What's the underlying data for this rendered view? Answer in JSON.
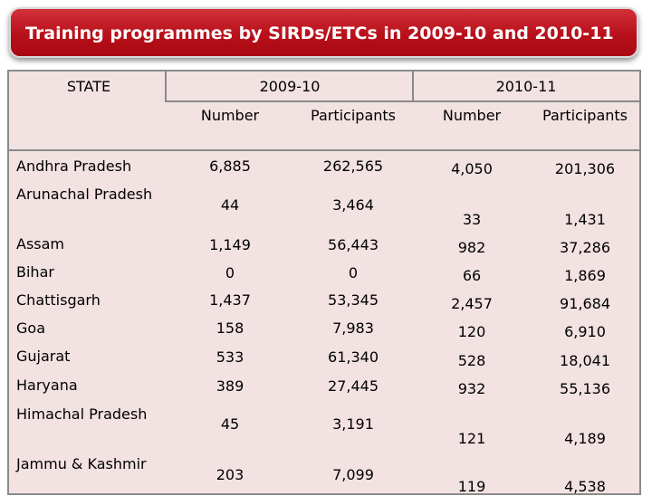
{
  "title": "Training programmes by SIRDs/ETCs in 2009-10 and 2010-11",
  "header": {
    "state": "STATE",
    "year1": "2009-10",
    "year2": "2010-11",
    "number": "Number",
    "participants": "Participants"
  },
  "rows": [
    {
      "state": "Andhra Pradesh",
      "n1": "6,885",
      "p1": "262,565",
      "n2": "4,050",
      "p2": "201,306"
    },
    {
      "state": "Arunachal Pradesh",
      "n1": "44",
      "p1": "3,464",
      "n2": "33",
      "p2": "1,431"
    },
    {
      "state": "Assam",
      "n1": "1,149",
      "p1": "56,443",
      "n2": "982",
      "p2": "37,286"
    },
    {
      "state": "Bihar",
      "n1": "0",
      "p1": "0",
      "n2": "66",
      "p2": "1,869"
    },
    {
      "state": "Chattisgarh",
      "n1": "1,437",
      "p1": "53,345",
      "n2": "2,457",
      "p2": "91,684"
    },
    {
      "state": "Goa",
      "n1": "158",
      "p1": "7,983",
      "n2": "120",
      "p2": "6,910"
    },
    {
      "state": "Gujarat",
      "n1": "533",
      "p1": "61,340",
      "n2": "528",
      "p2": "18,041"
    },
    {
      "state": "Haryana",
      "n1": "389",
      "p1": "27,445",
      "n2": "932",
      "p2": "55,136"
    },
    {
      "state": "Himachal Pradesh",
      "n1": "45",
      "p1": "3,191",
      "n2": "121",
      "p2": "4,189"
    },
    {
      "state": "Jammu & Kashmir",
      "n1": "203",
      "p1": "7,099",
      "n2": "119",
      "p2": "4,538"
    }
  ]
}
